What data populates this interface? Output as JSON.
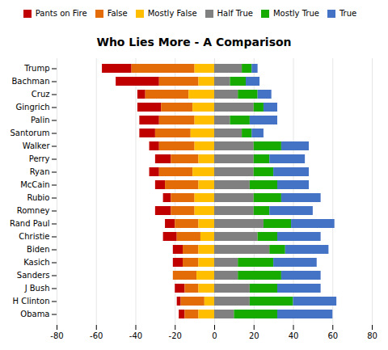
{
  "chart_data": {
    "type": "bar",
    "orientation": "horizontal",
    "stacked": true,
    "title": "Who Lies More - A Comparison",
    "categories": [
      "Trump",
      "Bachman",
      "Cruz",
      "Gingrich",
      "Palin",
      "Santorum",
      "Walker",
      "Perry",
      "Ryan",
      "McCain",
      "Rubio",
      "Romney",
      "Rand Paul",
      "Christie",
      "Biden",
      "Kasich",
      "Sanders",
      "J Bush",
      "H Clinton",
      "Obama"
    ],
    "series": [
      {
        "name": "Pants on Fire",
        "color": "#c00000",
        "values": [
          -15,
          -22,
          -4,
          -12,
          -10,
          -8,
          -5,
          -8,
          -5,
          -5,
          -4,
          -8,
          -5,
          -7,
          -5,
          -5,
          0,
          -5,
          -2,
          -3
        ]
      },
      {
        "name": "False",
        "color": "#e36c09",
        "values": [
          -32,
          -20,
          -22,
          -16,
          -18,
          -18,
          -18,
          -14,
          -17,
          -17,
          -12,
          -12,
          -12,
          -12,
          -8,
          -8,
          -12,
          -7,
          -12,
          -7
        ]
      },
      {
        "name": "Mostly False",
        "color": "#ffbf00",
        "values": [
          -10,
          -8,
          -13,
          -11,
          -10,
          -12,
          -10,
          -8,
          -11,
          -8,
          -10,
          -10,
          -8,
          -7,
          -8,
          -8,
          -9,
          -8,
          -5,
          -8
        ]
      },
      {
        "name": "Half True",
        "color": "#808080",
        "values": [
          14,
          8,
          12,
          20,
          8,
          14,
          20,
          20,
          20,
          18,
          20,
          20,
          25,
          22,
          28,
          12,
          12,
          18,
          18,
          10
        ]
      },
      {
        "name": "Mostly True",
        "color": "#17ab00",
        "values": [
          5,
          8,
          10,
          5,
          10,
          5,
          14,
          8,
          10,
          14,
          14,
          8,
          14,
          10,
          8,
          18,
          22,
          14,
          22,
          22
        ]
      },
      {
        "name": "True",
        "color": "#4472c4",
        "values": [
          3,
          7,
          7,
          7,
          14,
          6,
          14,
          18,
          18,
          16,
          20,
          22,
          22,
          22,
          22,
          22,
          20,
          22,
          22,
          28
        ]
      }
    ],
    "xlim": [
      -80,
      80
    ],
    "xticks": [
      -80,
      -60,
      -40,
      -20,
      0,
      20,
      40,
      60,
      80
    ],
    "grid": true
  }
}
